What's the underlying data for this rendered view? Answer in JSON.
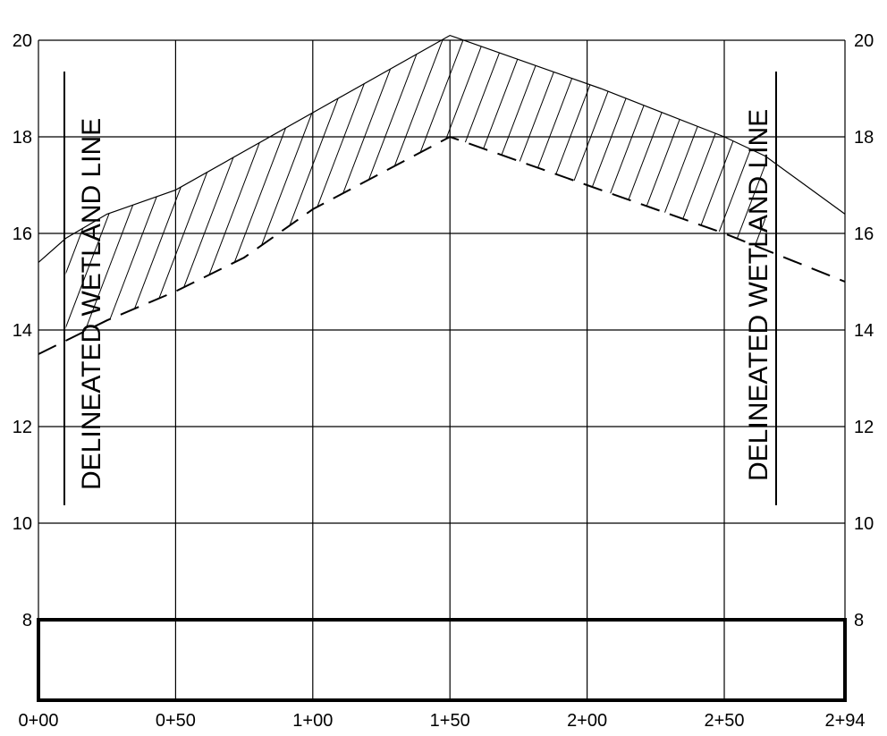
{
  "chart_data": {
    "type": "line",
    "x_tick_labels": [
      "0+00",
      "0+50",
      "1+00",
      "1+50",
      "2+00",
      "2+50",
      "2+94"
    ],
    "x_ticks": [
      0,
      50,
      100,
      150,
      200,
      250,
      294
    ],
    "y_ticks_left": [
      "8",
      "10",
      "12",
      "14",
      "16",
      "18",
      "20"
    ],
    "y_ticks_right": [
      "8",
      "10",
      "12",
      "14",
      "16",
      "18",
      "20"
    ],
    "y_values": [
      8,
      10,
      12,
      14,
      16,
      18,
      20
    ],
    "xlim": [
      0,
      294
    ],
    "ylim": [
      6.2,
      20
    ],
    "grid": true,
    "series": [
      {
        "style": "solid",
        "x": [
          0,
          10,
          25,
          50,
          100,
          150,
          205,
          250,
          265,
          294
        ],
        "y": [
          15.4,
          15.9,
          16.4,
          16.9,
          18.5,
          20.1,
          19.0,
          18.0,
          17.6,
          16.4
        ]
      },
      {
        "style": "dashed",
        "x": [
          0,
          25,
          50,
          75,
          100,
          150,
          200,
          250,
          294
        ],
        "y": [
          13.5,
          14.2,
          14.8,
          15.5,
          16.5,
          18.0,
          17.0,
          16.0,
          15.0
        ]
      }
    ],
    "hatched_region": {
      "x_start": 10,
      "x_end": 265
    },
    "annotations": [
      {
        "text": "DELINEATED WETLAND LINE",
        "station": 10
      },
      {
        "text": "DELINEATED WETLAND LINE",
        "station": 265
      }
    ],
    "box_elevation_top": 8
  }
}
